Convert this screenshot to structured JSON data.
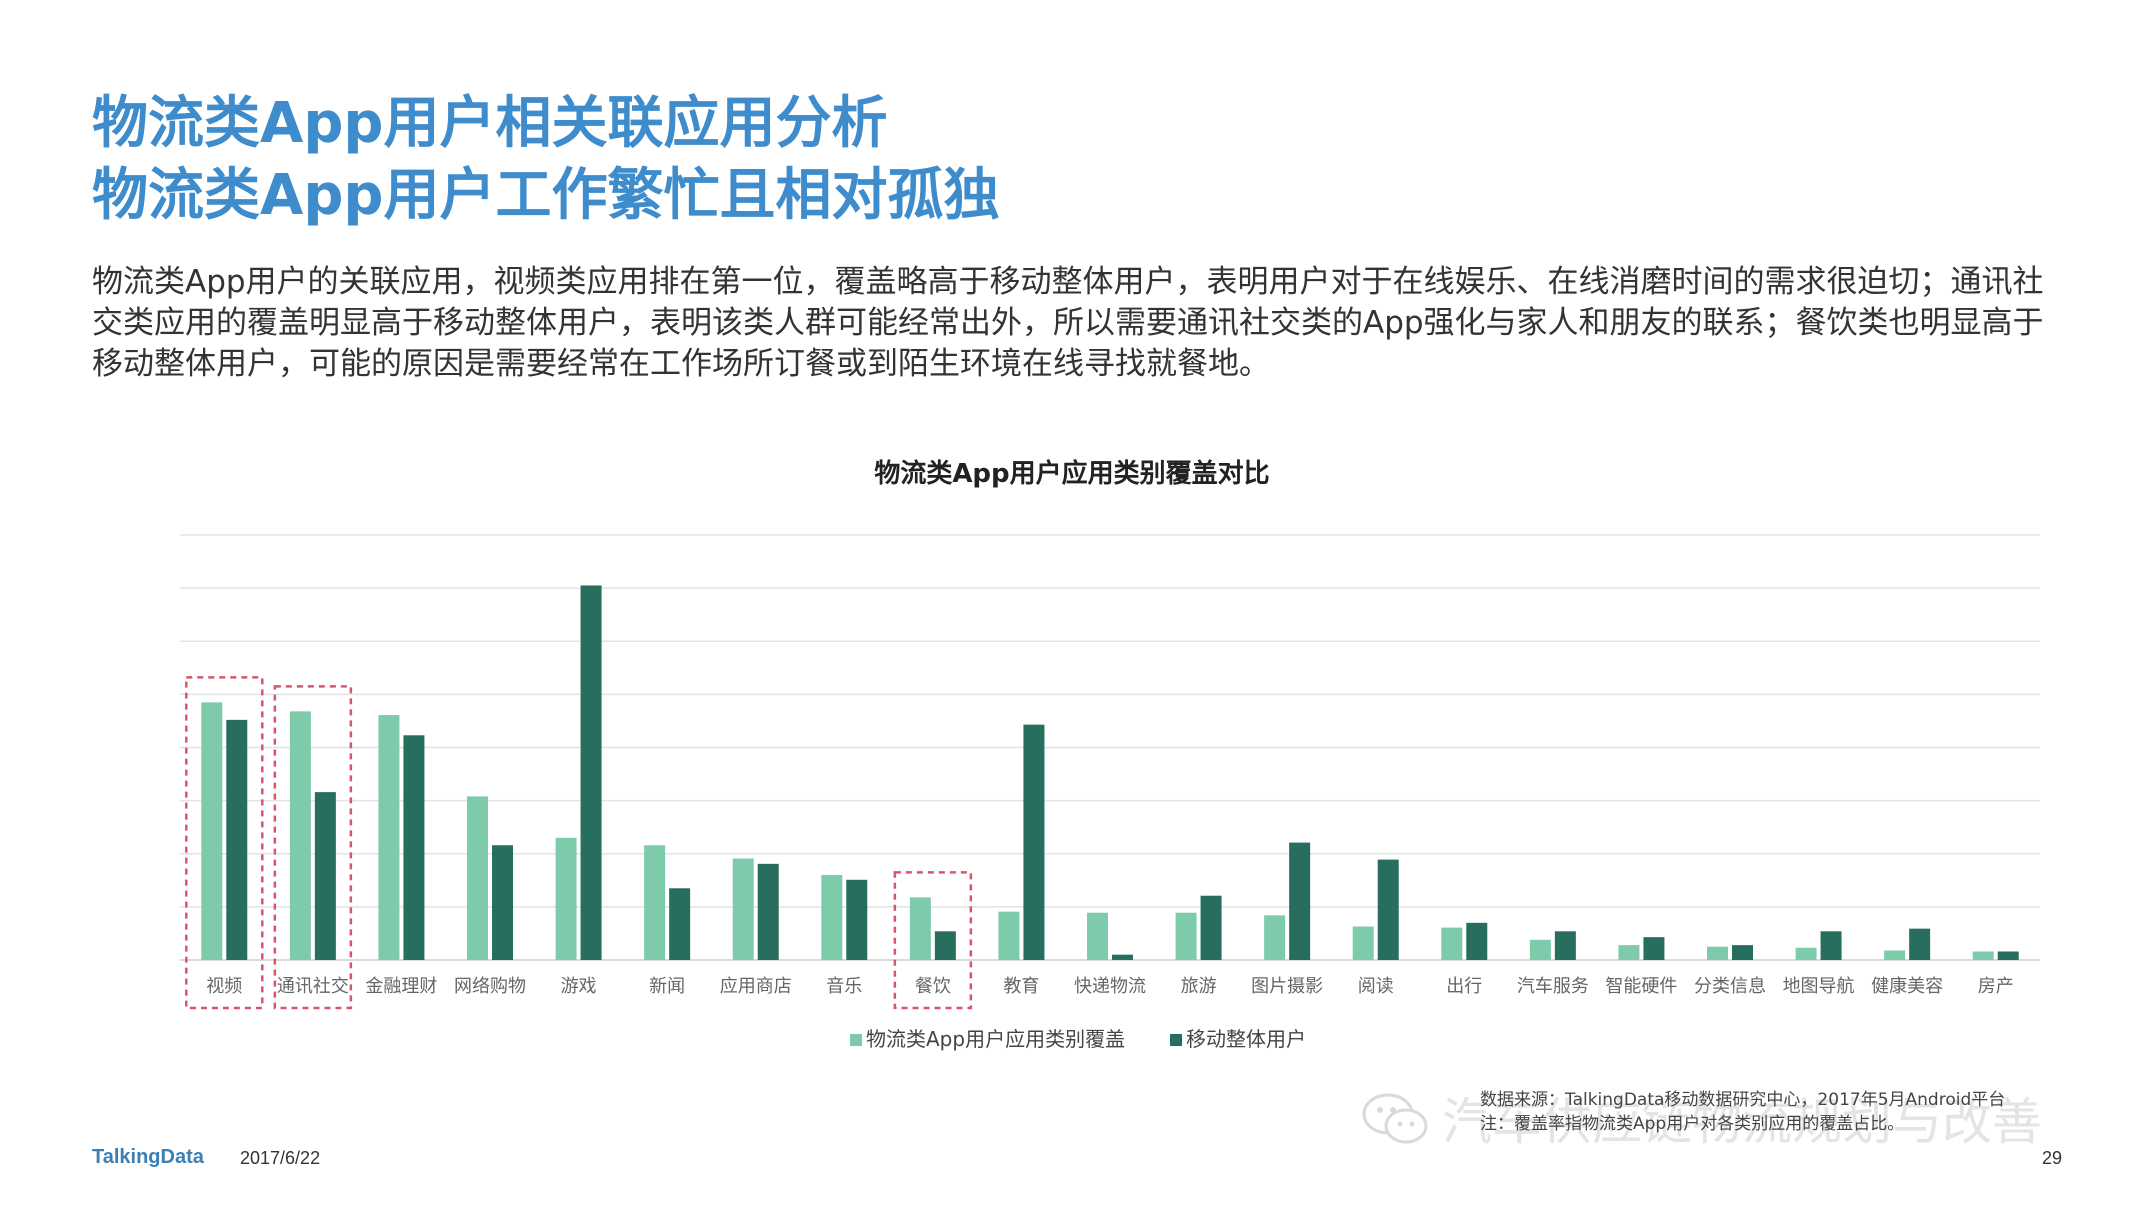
{
  "title_line1": "物流类App用户相关联应用分析",
  "title_line2": "物流类App用户工作繁忙且相对孤独",
  "description": "物流类App用户的关联应用，视频类应用排在第一位，覆盖略高于移动整体用户，表明用户对于在线娱乐、在线消磨时间的需求很迫切；通讯社交类应用的覆盖明显高于移动整体用户，表明该类人群可能经常出外，所以需要通讯社交类的App强化与家人和朋友的联系；餐饮类也明显高于移动整体用户，可能的原因是需要经常在工作场所订餐或到陌生环境在线寻找就餐地。",
  "footer": {
    "brand": "TalkingData",
    "date": "2017/6/22",
    "page": "29",
    "source_line1": "数据来源：TalkingData移动数据研究中心，2017年5月Android平台",
    "source_line2": "注：覆盖率指物流类App用户对各类别应用的覆盖占比。",
    "watermark": "汽车供应链物流规划与改善"
  },
  "colors": {
    "title": "#3f8ccd",
    "series1": "#7ecbab",
    "series2": "#276e5f",
    "highlight": "#d9556b",
    "grid": "#e3e3e3"
  },
  "chart_data": {
    "type": "bar",
    "title": "物流类App用户应用类别覆盖对比",
    "categories": [
      "视频",
      "通讯社交",
      "金融理财",
      "网络购物",
      "游戏",
      "新闻",
      "应用商店",
      "音乐",
      "餐饮",
      "教育",
      "快递物流",
      "旅游",
      "图片摄影",
      "阅读",
      "出行",
      "汽车服务",
      "智能硬件",
      "分类信息",
      "地图导航",
      "健康美容",
      "房产"
    ],
    "series": [
      {
        "name": "物流类App用户应用类别覆盖",
        "values": [
          4.85,
          4.68,
          4.61,
          3.08,
          2.3,
          2.16,
          1.91,
          1.6,
          1.18,
          0.91,
          0.89,
          0.89,
          0.84,
          0.63,
          0.61,
          0.38,
          0.28,
          0.25,
          0.23,
          0.18,
          0.16
        ]
      },
      {
        "name": "移动整体用户",
        "values": [
          4.52,
          3.16,
          4.23,
          2.16,
          7.05,
          1.35,
          1.81,
          1.51,
          0.54,
          4.43,
          0.1,
          1.21,
          2.21,
          1.89,
          0.7,
          0.54,
          0.43,
          0.28,
          0.54,
          0.59,
          0.16
        ]
      }
    ],
    "highlighted": [
      "视频",
      "通讯社交",
      "餐饮"
    ],
    "ylim": [
      0,
      8
    ],
    "grid": true,
    "legend_position": "bottom"
  }
}
